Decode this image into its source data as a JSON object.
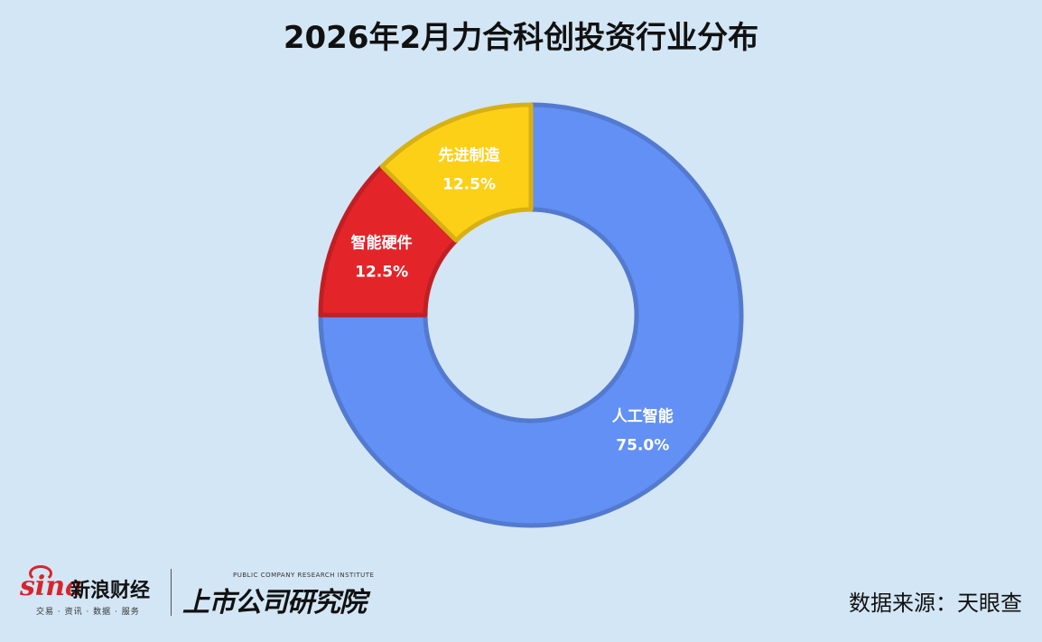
{
  "title": "2026年2月力合科创投资行业分布",
  "chart_data": {
    "type": "pie",
    "variant": "donut",
    "title": "2026年2月力合科创投资行业分布",
    "slices": [
      {
        "label": "人工智能",
        "value": 75.0,
        "display": "75.0%",
        "color": "#6290f4"
      },
      {
        "label": "智能硬件",
        "value": 12.5,
        "display": "12.5%",
        "color": "#e3252a"
      },
      {
        "label": "先进制造",
        "value": 12.5,
        "display": "12.5%",
        "color": "#fdd018"
      }
    ],
    "start_angle": "top",
    "direction": "clockwise"
  },
  "footer": {
    "sina_logo": "sina",
    "sina_name": "新浪财经",
    "sina_sub": "交易 · 资讯 · 数据 · 服务",
    "research_en": "PUBLIC COMPANY RESEARCH INSTITUTE",
    "research_cn": "上市公司研究院",
    "source": "数据来源：天眼查"
  }
}
